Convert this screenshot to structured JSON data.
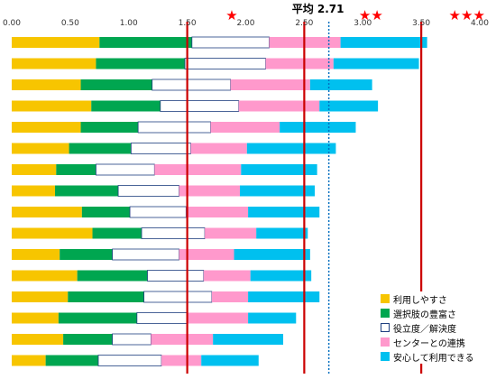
{
  "chart_data": {
    "type": "bar",
    "orientation": "horizontal",
    "stacked": true,
    "xlim": [
      0,
      4
    ],
    "x_ticks": [
      "0.00",
      "0.50",
      "1.00",
      "1.50",
      "2.00",
      "2.50",
      "3.00",
      "3.50",
      "4.00"
    ],
    "grid": false,
    "legend_position": "bottom-right",
    "series": [
      {
        "name": "利用しやすさ",
        "color": "#f7c500",
        "values": [
          0.75,
          0.72,
          0.59,
          0.68,
          0.59,
          0.49,
          0.38,
          0.37,
          0.6,
          0.69,
          0.41,
          0.56,
          0.48,
          0.4,
          0.44,
          0.29
        ]
      },
      {
        "name": "選択肢の豊富さ",
        "color": "#00a650",
        "values": [
          0.79,
          0.76,
          0.61,
          0.59,
          0.49,
          0.53,
          0.34,
          0.54,
          0.41,
          0.42,
          0.45,
          0.6,
          0.65,
          0.67,
          0.42,
          0.45
        ]
      },
      {
        "name": "役立度／解決度",
        "color": "#ffffff",
        "values": [
          0.66,
          0.69,
          0.67,
          0.67,
          0.62,
          0.51,
          0.5,
          0.52,
          0.48,
          0.54,
          0.57,
          0.48,
          0.58,
          0.43,
          0.33,
          0.54
        ]
      },
      {
        "name": "センターとの連携",
        "color": "#ff99cc",
        "values": [
          0.61,
          0.58,
          0.68,
          0.69,
          0.59,
          0.48,
          0.74,
          0.52,
          0.53,
          0.44,
          0.47,
          0.4,
          0.31,
          0.52,
          0.53,
          0.34
        ]
      },
      {
        "name": "安心して利用できる",
        "color": "#00c0ef",
        "values": [
          0.74,
          0.73,
          0.53,
          0.5,
          0.65,
          0.76,
          0.65,
          0.64,
          0.61,
          0.44,
          0.65,
          0.52,
          0.61,
          0.41,
          0.6,
          0.49
        ]
      }
    ],
    "reference_lines": [
      {
        "value": 1.5,
        "color": "#cc0000",
        "style": "solid"
      },
      {
        "value": 2.5,
        "color": "#cc0000",
        "style": "solid"
      },
      {
        "value": 2.71,
        "color": "#0070c0",
        "style": "dotted",
        "label": "平均 2.71"
      },
      {
        "value": 3.5,
        "color": "#cc0000",
        "style": "solid"
      }
    ],
    "star_markers": [
      {
        "x": 1.88,
        "count": 1
      },
      {
        "x": 3.07,
        "count": 2
      },
      {
        "x": 3.89,
        "count": 3
      }
    ],
    "star_color": "#ff0000"
  }
}
